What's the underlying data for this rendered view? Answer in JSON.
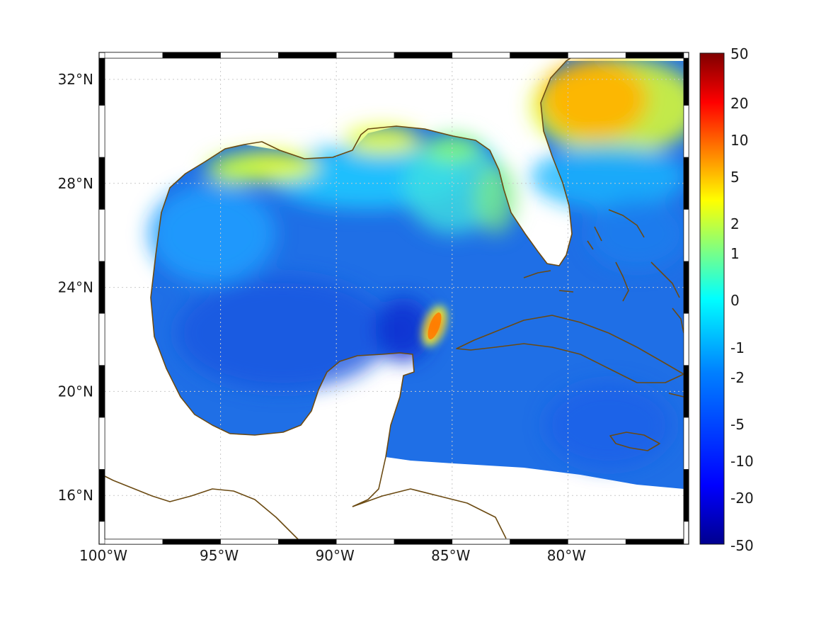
{
  "map": {
    "lat_ticks": [
      {
        "value": 32,
        "label": "32°N"
      },
      {
        "value": 28,
        "label": "28°N"
      },
      {
        "value": 24,
        "label": "24°N"
      },
      {
        "value": 20,
        "label": "20°N"
      },
      {
        "value": 16,
        "label": "16°N"
      }
    ],
    "lon_ticks": [
      {
        "value": -100,
        "label": "100°W"
      },
      {
        "value": -95,
        "label": "95°W"
      },
      {
        "value": -90,
        "label": "90°W"
      },
      {
        "value": -85,
        "label": "85°W"
      },
      {
        "value": -80,
        "label": "80°W"
      }
    ],
    "lon_range": [
      -100,
      -75
    ],
    "lat_range": [
      15,
      33
    ],
    "grid": true,
    "coastline_color": "#6b4a12",
    "anomaly": {
      "lon": -85.9,
      "lat": 22.8,
      "level": "5 to 10"
    }
  },
  "colorbar": {
    "labels": [
      "50",
      "20",
      "10",
      "5",
      "2",
      "1",
      "0",
      "-1",
      "-2",
      "-5",
      "-10",
      "-20",
      "-50"
    ],
    "colors": [
      "#7f0000",
      "#ff0000",
      "#ff8000",
      "#ffff00",
      "#00ffff",
      "#0080ff",
      "#0000ff",
      "#00008f"
    ]
  }
}
